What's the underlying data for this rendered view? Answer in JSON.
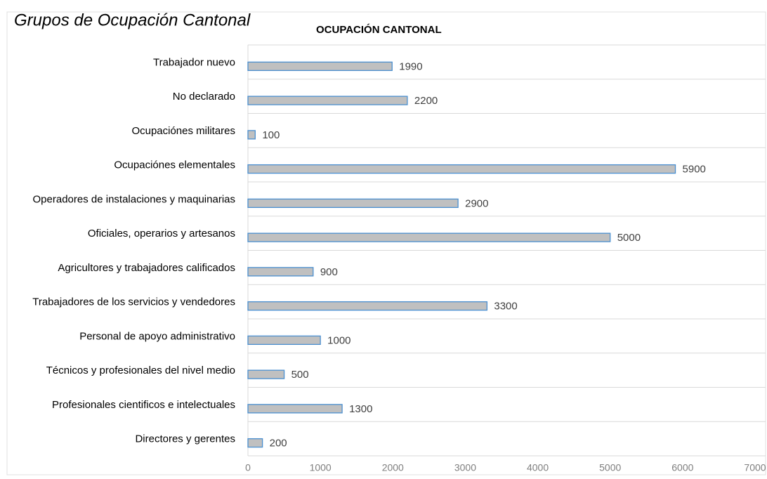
{
  "page_title": "Grupos de Ocupación Cantonal",
  "chart_data": {
    "type": "barh",
    "title": "OCUPACIÓN CANTONAL",
    "categories": [
      "Trabajador nuevo",
      "No declarado",
      "Ocupaciónes militares",
      "Ocupaciónes elementales",
      "Operadores de instalaciones y maquinarias",
      "Oficiales, operarios y artesanos",
      "Agricultores y trabajadores calificados",
      "Trabajadores de los servicios y vendedores",
      "Personal de apoyo administrativo",
      "Técnicos y profesionales del nivel medio",
      "Profesionales cientificos e intelectuales",
      "Directores y gerentes"
    ],
    "values": [
      1990,
      2200,
      100,
      5900,
      2900,
      5000,
      900,
      3300,
      1000,
      500,
      1300,
      200
    ],
    "color": "#c0c0c0",
    "edge_color": "#4a8fd0",
    "xlim": [
      0,
      7000
    ],
    "xticks": [
      0,
      1000,
      2000,
      3000,
      4000,
      5000,
      6000,
      7000
    ]
  }
}
